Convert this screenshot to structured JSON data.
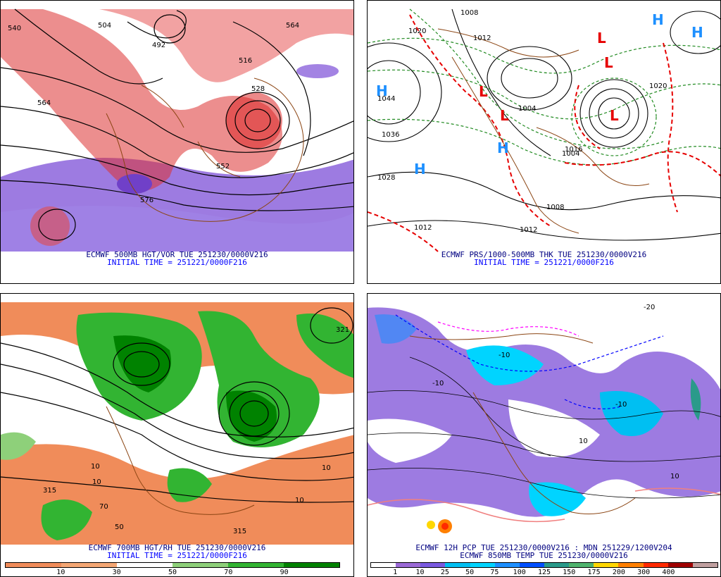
{
  "panels": [
    {
      "caption_line1": "ECMWF 500MB HGT/VOR TUE 251230/0000V216",
      "caption_line2": "INITIAL TIME = 251221/0000F216",
      "contour_labels": [
        "540",
        "564",
        "504",
        "564",
        "492",
        "516",
        "528",
        "552",
        "576"
      ]
    },
    {
      "caption_line1": "ECMWF PRS/1000-500MB THK TUE 251230/0000V216",
      "caption_line2": "INITIAL TIME = 251221/0000F216",
      "contour_labels": [
        "1020",
        "1044",
        "1036",
        "1028",
        "1012",
        "1012",
        "1008",
        "1004",
        "1004",
        "1016",
        "1020",
        "1012",
        "1008"
      ],
      "high_symbol": "H",
      "low_symbol": "L"
    },
    {
      "caption_line1": "ECMWF 700MB HGT/RH TUE 251230/0000V216",
      "caption_line2": "INITIAL TIME = 251221/0000F216",
      "contour_labels": [
        "321",
        "10",
        "315",
        "10",
        "50",
        "10",
        "70",
        "315",
        "10"
      ],
      "legend_ticks": [
        "10",
        "30",
        "50",
        "70",
        "90"
      ],
      "legend_colors": [
        "#f08c5a",
        "#f4a774",
        "#ffffff",
        "#8ed07a",
        "#32b432",
        "#008200"
      ]
    },
    {
      "caption_line1": "ECMWF 12H PCP TUE 251230/0000V216 : MDN 251229/1200V204",
      "caption_line2": "ECMWF 850MB TEMP TUE 251230/0000V216",
      "contour_labels": [
        "-20",
        "-10",
        "-10",
        "-10",
        "10",
        "10"
      ],
      "legend_ticks": [
        "1",
        "10",
        "25",
        "50",
        "75",
        "100",
        "125",
        "150",
        "175",
        "200",
        "300",
        "400"
      ],
      "legend_colors": [
        "#ffffff",
        "#9b6ad6",
        "#7a5ae0",
        "#00bff2",
        "#00d4ff",
        "#1e90ff",
        "#0050ff",
        "#2a9a8a",
        "#50b46e",
        "#ffd700",
        "#ff8000",
        "#ff2a00",
        "#a00000",
        "#c0a0a0"
      ]
    }
  ]
}
